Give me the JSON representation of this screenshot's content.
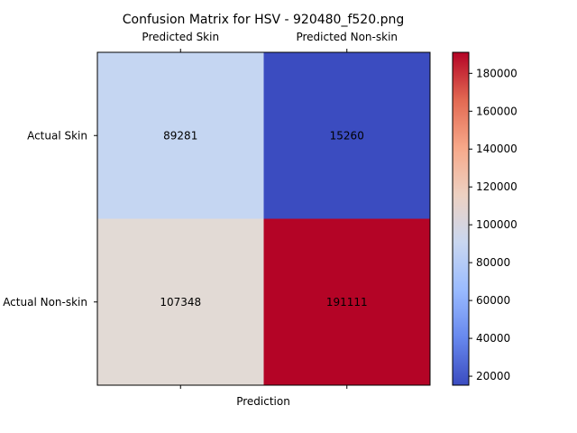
{
  "chart_data": {
    "type": "heatmap",
    "title": "Confusion Matrix for HSV - 920480_f520.png",
    "xlabel": "Prediction",
    "ylabel": "",
    "x_tick_labels": [
      "Predicted Skin",
      "Predicted Non-skin"
    ],
    "y_tick_labels": [
      "Actual Skin",
      "Actual Non-skin"
    ],
    "matrix": [
      [
        89281,
        15260
      ],
      [
        107348,
        191111
      ]
    ],
    "colormap": "coolwarm",
    "colorbar": {
      "min": 15260,
      "max": 191111,
      "ticks": [
        20000,
        40000,
        60000,
        80000,
        100000,
        120000,
        140000,
        160000,
        180000
      ],
      "tick_labels": [
        "20000",
        "40000",
        "60000",
        "80000",
        "100000",
        "120000",
        "140000",
        "160000",
        "180000"
      ]
    },
    "cell_colors": [
      [
        "#c5d6f2",
        "#3b4cc0"
      ],
      [
        "#e2dad5",
        "#b40426"
      ]
    ],
    "colorbar_stops": [
      "#3b4cc0",
      "#6788ee",
      "#9abbff",
      "#c9d7f0",
      "#edd1c2",
      "#f7a889",
      "#e26952",
      "#b40426"
    ]
  }
}
